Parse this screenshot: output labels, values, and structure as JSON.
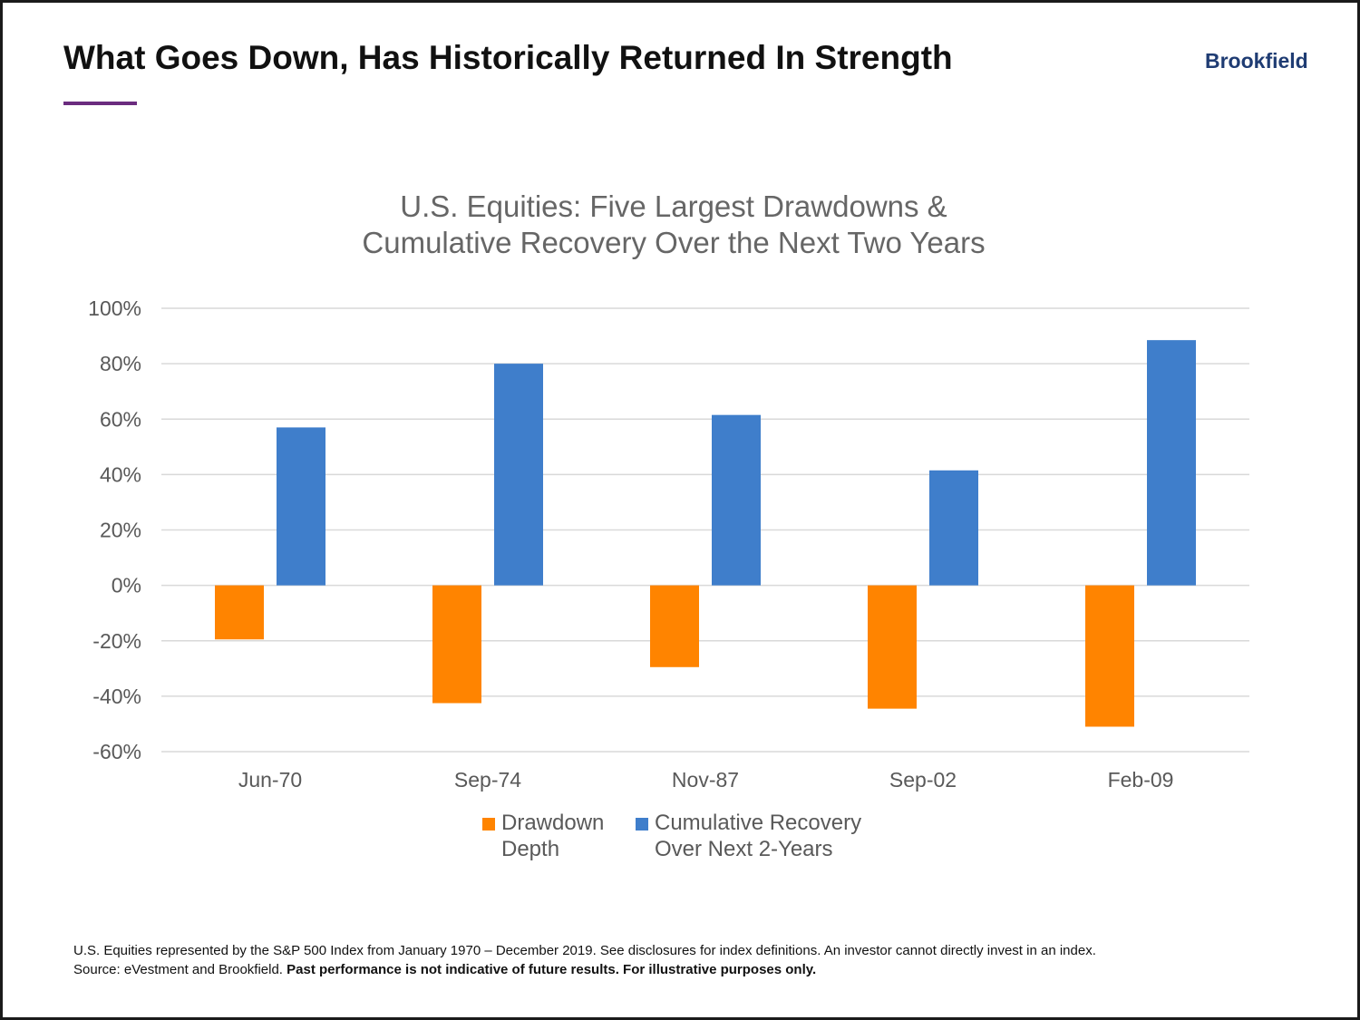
{
  "header": {
    "title": "What Goes Down, Has Historically Returned In Strength",
    "brand": "Brookfield"
  },
  "colors": {
    "accent_rule": "#6b2c7f",
    "brand": "#1f3c73",
    "drawdown": "#ff8400",
    "recovery": "#3f7ecb",
    "grid": "#d9d9d9",
    "axis_text": "#595959"
  },
  "chart_data": {
    "type": "bar",
    "title_lines": [
      "U.S. Equities: Five Largest Drawdowns &",
      "Cumulative Recovery Over the Next Two Years"
    ],
    "categories": [
      "Jun-70",
      "Sep-74",
      "Nov-87",
      "Sep-02",
      "Feb-09"
    ],
    "series": [
      {
        "name_lines": [
          "Drawdown",
          "Depth"
        ],
        "values": [
          -19.5,
          -42.5,
          -29.5,
          -44.5,
          -51
        ]
      },
      {
        "name_lines": [
          "Cumulative Recovery",
          "Over Next 2-Years"
        ],
        "values": [
          57,
          80,
          61.5,
          41.5,
          88.5
        ]
      }
    ],
    "ylim": [
      -60,
      100
    ],
    "yticks": [
      100,
      80,
      60,
      40,
      20,
      0,
      -20,
      -40,
      -60
    ],
    "ytick_labels": [
      "100%",
      "80%",
      "60%",
      "40%",
      "20%",
      "0%",
      "-20%",
      "-40%",
      "-60%"
    ],
    "grid": true,
    "legend_position": "bottom-center"
  },
  "footnote": {
    "line1": "U.S. Equities represented by the S&P 500 Index from January 1970 – December 2019. See disclosures for index definitions. An investor cannot directly invest in an index.",
    "line2_plain": "Source: eVestment and Brookfield. ",
    "line2_bold": "Past performance is not indicative of future results. For illustrative purposes only."
  }
}
